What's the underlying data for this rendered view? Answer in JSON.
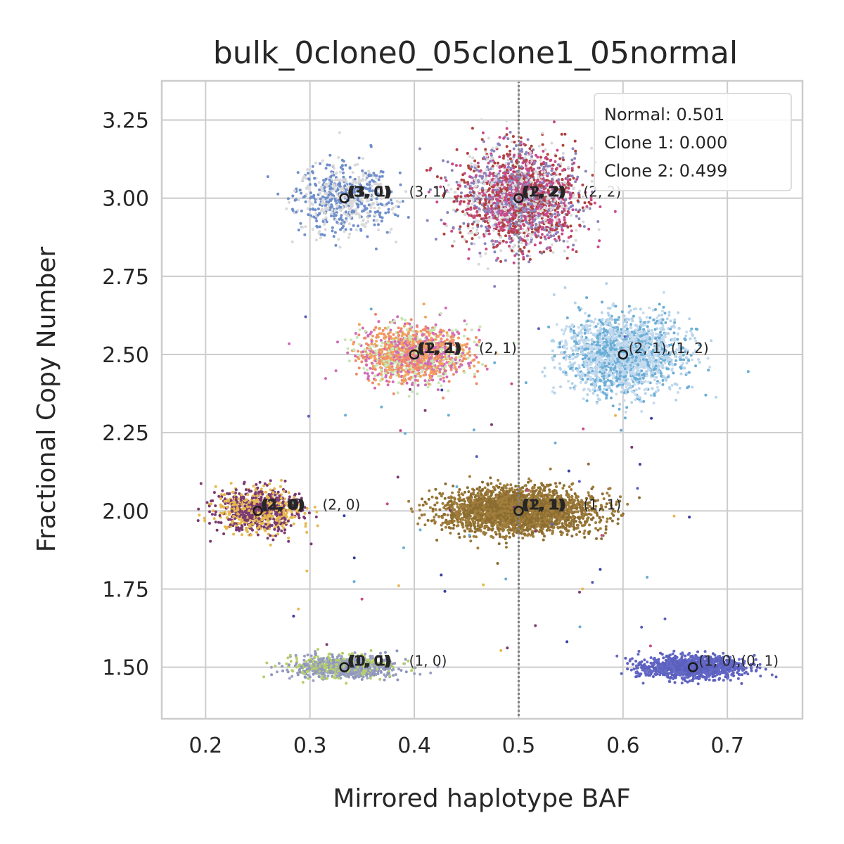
{
  "chart_data": {
    "type": "scatter",
    "title": "bulk_0clone0_05clone1_05normal",
    "xlabel": "Mirrored haplotype BAF",
    "ylabel": "Fractional Copy Number",
    "xlim": [
      0.158,
      0.772
    ],
    "ylim": [
      1.335,
      3.375
    ],
    "xticks": [
      "0.2",
      "0.3",
      "0.4",
      "0.5",
      "0.6",
      "0.7"
    ],
    "yticks": [
      "1.50",
      "1.75",
      "2.00",
      "2.25",
      "2.50",
      "2.75",
      "3.00",
      "3.25"
    ],
    "grid": true,
    "vline": {
      "x": 0.5,
      "style": "dotted",
      "color": "#808080"
    },
    "legend": {
      "placement": "top-right",
      "entries": [
        "Normal: 0.501",
        "Clone 1: 0.000",
        "Clone 2: 0.499"
      ]
    },
    "clusters": [
      {
        "x": 0.333,
        "y": 3.0,
        "sx": 0.022,
        "sy": 0.055,
        "n": 700,
        "colors": [
          "#d9d9d9",
          "#6f8fcc"
        ],
        "labels": [
          "(3, 0)",
          "(3, 1)"
        ],
        "label_text": "(3, 1)"
      },
      {
        "x": 0.5,
        "y": 3.0,
        "sx": 0.028,
        "sy": 0.075,
        "n": 2200,
        "colors": [
          "#8b83bd",
          "#b0413e",
          "#d9d9d9",
          "#c94a8a"
        ],
        "labels": [
          "(1, 2)",
          "(2, 2)"
        ],
        "label_text": "(2, 2)"
      },
      {
        "x": 0.4,
        "y": 2.5,
        "sx": 0.025,
        "sy": 0.045,
        "n": 1400,
        "colors": [
          "#f08a6d",
          "#d16bb9",
          "#f2a45c",
          "#c7e6b4"
        ],
        "labels": [
          "(1, 2)",
          "(2, 1)"
        ],
        "label_text": "(2, 1)"
      },
      {
        "x": 0.6,
        "y": 2.5,
        "sx": 0.028,
        "sy": 0.06,
        "n": 2000,
        "colors": [
          "#c6dbef",
          "#b5d3ea",
          "#6baed6"
        ],
        "labels": [],
        "label_text": "(2, 1),(1, 2)"
      },
      {
        "x": 0.25,
        "y": 2.0,
        "sx": 0.02,
        "sy": 0.035,
        "n": 900,
        "colors": [
          "#7b3a70",
          "#e6b94f"
        ],
        "labels": [
          "(2, 0)",
          "(1, 0)"
        ],
        "label_text": "(2, 0)"
      },
      {
        "x": 0.5,
        "y": 2.0,
        "sx": 0.035,
        "sy": 0.035,
        "n": 2600,
        "colors": [
          "#8c6d31",
          "#a07d3b"
        ],
        "labels": [
          "(1, 1)",
          "(2, 1)"
        ],
        "label_text": "(1, 1)"
      },
      {
        "x": 0.333,
        "y": 1.5,
        "sx": 0.025,
        "sy": 0.018,
        "n": 900,
        "colors": [
          "#9aa0c2",
          "#8e96bc",
          "#b5cf6b"
        ],
        "labels": [
          "(1, 0)",
          "(0, 1)"
        ],
        "label_text": "(1, 0)"
      },
      {
        "x": 0.667,
        "y": 1.5,
        "sx": 0.025,
        "sy": 0.018,
        "n": 1100,
        "colors": [
          "#5b5fbf",
          "#6369c4"
        ],
        "labels": [],
        "label_text": "(1, 0),(0, 1)"
      }
    ],
    "outliers_colors": [
      "#6baed6",
      "#7b3a70",
      "#c94a8a",
      "#e6b94f",
      "#3a3da0",
      "#5b5fbf"
    ]
  }
}
